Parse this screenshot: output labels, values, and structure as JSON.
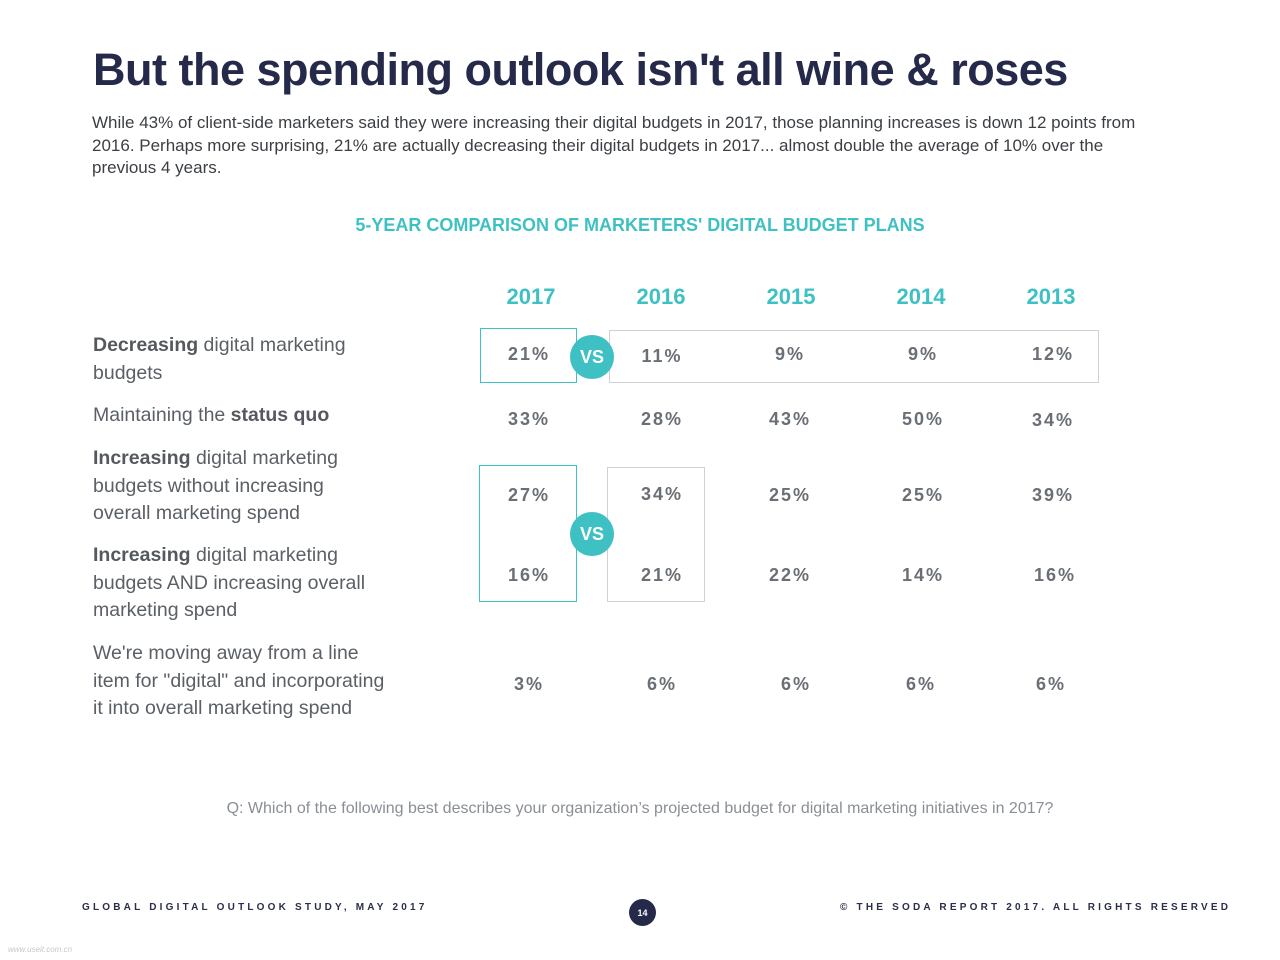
{
  "title": "But the spending outlook isn't all wine & roses",
  "intro": "While 43% of client-side marketers said they were increasing their digital budgets in 2017, those planning increases is down 12 points from 2016. Perhaps more surprising, 21% are actually decreasing their digital budgets in 2017... almost double the average of 10% over the previous 4 years.",
  "chart_data": {
    "type": "table",
    "title": "5-YEAR COMPARISON OF MARKETERS' DIGITAL BUDGET PLANS",
    "columns": [
      "2017",
      "2016",
      "2015",
      "2014",
      "2013"
    ],
    "rows": [
      {
        "bold": "Decreasing",
        "text": " digital marketing budgets",
        "values": [
          "21%",
          "11%",
          "9%",
          "9%",
          "12%"
        ]
      },
      {
        "prefix": "Maintaining the ",
        "bold": "status quo",
        "values": [
          "33%",
          "28%",
          "43%",
          "50%",
          "34%"
        ]
      },
      {
        "bold": "Increasing",
        "text": " digital marketing budgets without increasing overall marketing spend",
        "values": [
          "27%",
          "34%",
          "25%",
          "25%",
          "39%"
        ]
      },
      {
        "bold": "Increasing",
        "text": " digital marketing budgets AND increasing overall marketing spend",
        "values": [
          "16%",
          "21%",
          "22%",
          "14%",
          "16%"
        ]
      },
      {
        "text": "We're moving away from a line item for \"digital\" and incorporating it into overall marketing spend",
        "values": [
          "3%",
          "6%",
          "6%",
          "6%",
          "6%"
        ]
      }
    ],
    "vs_label": "VS"
  },
  "question": "Q: Which of the following best describes your organization’s projected budget for digital marketing initiatives in 2017?",
  "footer": {
    "left": "GLOBAL DIGITAL OUTLOOK STUDY, MAY 2017",
    "page": "14",
    "right": "© THE SODA REPORT 2017. ALL RIGHTS RESERVED"
  },
  "watermark": "www.useit.com.cn",
  "colors": {
    "accent": "#3fc0c3",
    "navy": "#262a4a",
    "box_grey": "#cfd2d5"
  }
}
